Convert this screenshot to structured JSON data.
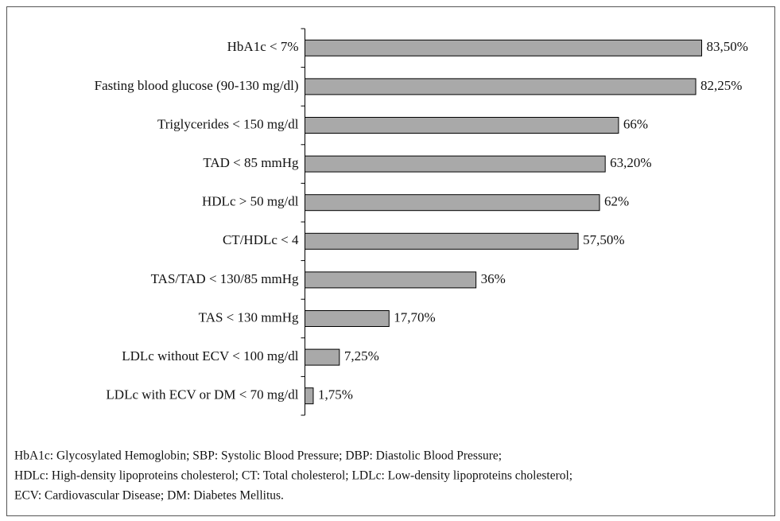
{
  "chart_data": {
    "type": "bar",
    "orientation": "horizontal",
    "categories": [
      "HbA1c < 7%",
      "Fasting blood glucose (90-130 mg/dl)",
      "Triglycerides < 150 mg/dl",
      "TAD < 85 mmHg",
      "HDLc > 50 mg/dl",
      "CT/HDLc < 4",
      "TAS/TAD < 130/85 mmHg",
      "TAS < 130 mmHg",
      "LDLc without ECV < 100 mg/dl",
      "LDLc with ECV or DM < 70 mg/dl"
    ],
    "values": [
      83.5,
      82.25,
      66,
      63.2,
      62,
      57.5,
      36,
      17.7,
      7.25,
      1.75
    ],
    "value_labels": [
      "83,50%",
      "82,25%",
      "66%",
      "63,20%",
      "62%",
      "57,50%",
      "36%",
      "17,70%",
      "7,25%",
      "1,75%"
    ],
    "color": "#a9a9a9",
    "annotations": [
      "HbA1c: Glycosylated Hemoglobin; SBP: Systolic Blood Pressure; DBP: Diastolic Blood Pressure;",
      "HDLc: High-density lipoproteins cholesterol; CT: Total cholesterol; LDLc: Low-density lipoproteins cholesterol;",
      "ECV: Cardiovascular Disease; DM: Diabetes Mellitus."
    ]
  }
}
